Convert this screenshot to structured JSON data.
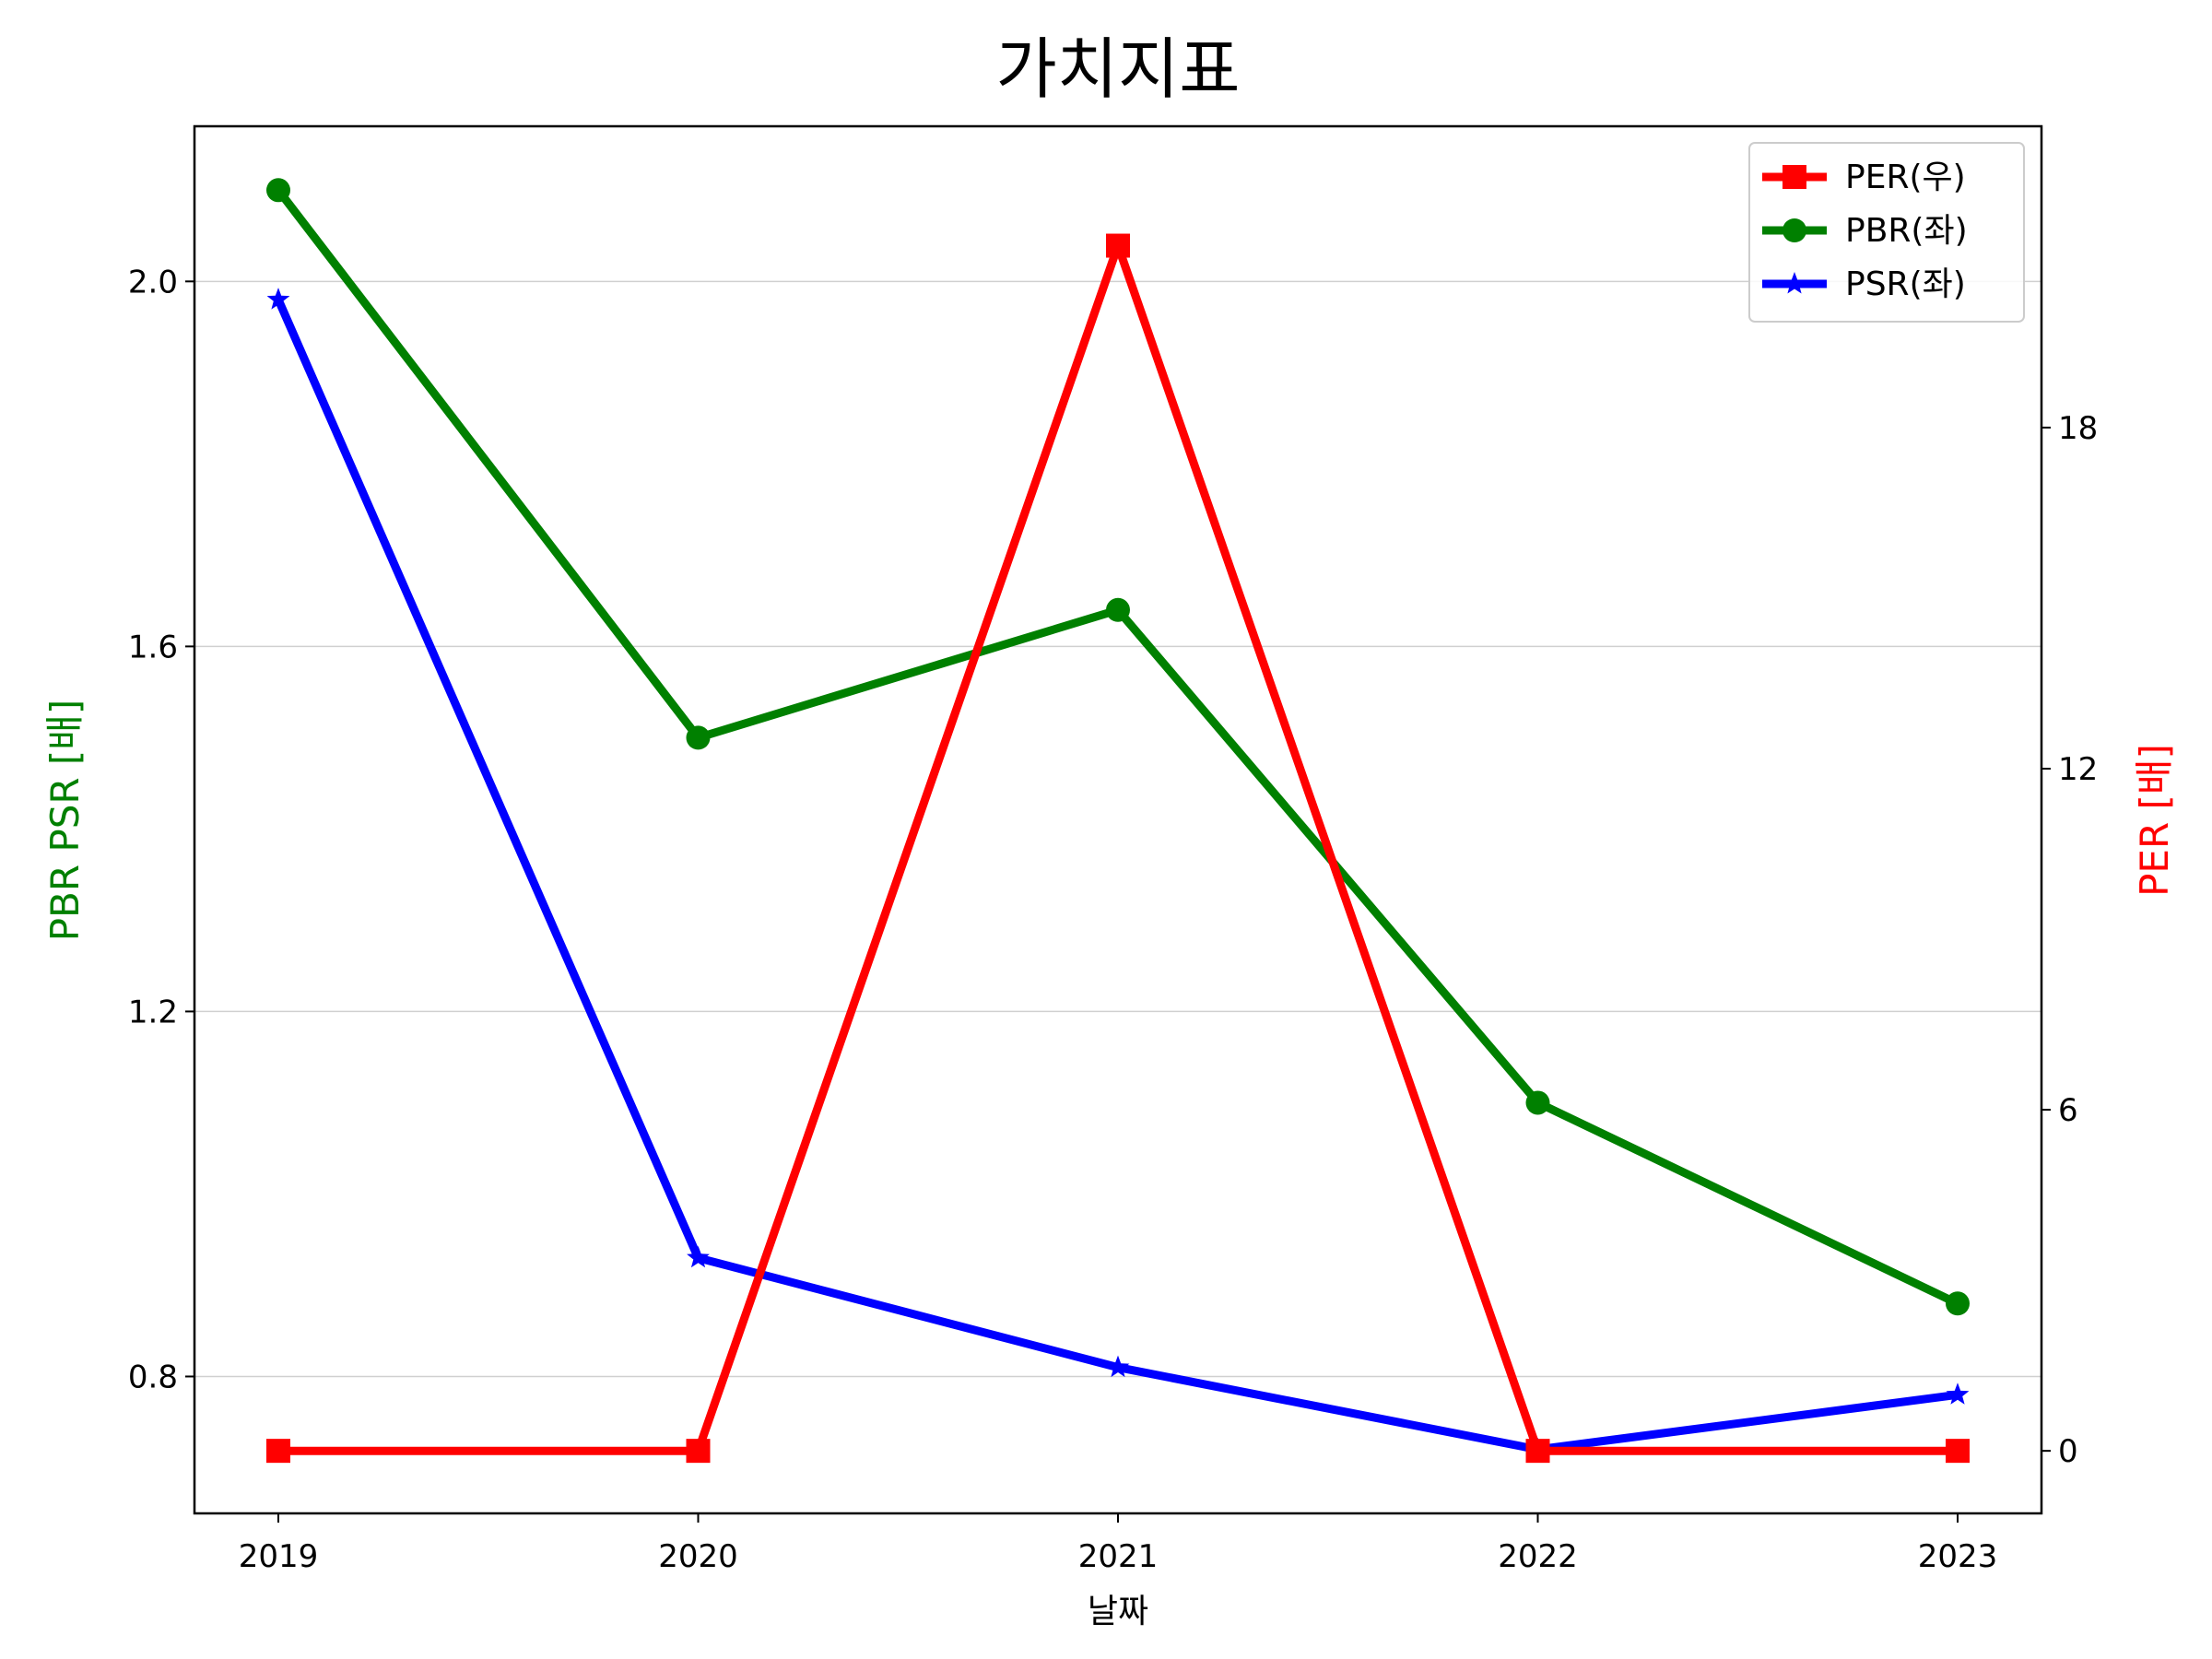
{
  "chart_data": {
    "type": "line",
    "title": "가치지표",
    "xlabel": "날짜",
    "ylabel_left": "PBR PSR [배]",
    "ylabel_right": "PER [배]",
    "categories": [
      "2019",
      "2020",
      "2021",
      "2022",
      "2023"
    ],
    "left_axis": {
      "ylim": [
        0.65,
        2.17
      ],
      "ticks": [
        0.8,
        1.2,
        1.6,
        2.0
      ],
      "tick_labels": [
        "0.8",
        "1.2",
        "1.6",
        "2.0"
      ]
    },
    "right_axis": {
      "ylim": [
        -1.1,
        23.3
      ],
      "ticks": [
        0,
        6,
        12,
        18
      ],
      "tick_labels": [
        "0",
        "6",
        "12",
        "18"
      ]
    },
    "grid": true,
    "legend_position": "upper right",
    "series": [
      {
        "name": "PER(우)",
        "axis": "right",
        "color": "#ff0000",
        "marker": "square",
        "values": [
          0,
          0,
          21.2,
          0,
          0
        ]
      },
      {
        "name": "PBR(좌)",
        "axis": "left",
        "color": "#008000",
        "marker": "circle",
        "values": [
          2.1,
          1.5,
          1.64,
          1.1,
          0.88
        ]
      },
      {
        "name": "PSR(좌)",
        "axis": "left",
        "color": "#0000ff",
        "marker": "star",
        "values": [
          1.98,
          0.93,
          0.81,
          0.72,
          0.78
        ]
      }
    ],
    "colors": {
      "ylabel_left": "#008000",
      "ylabel_right": "#ff0000"
    }
  }
}
